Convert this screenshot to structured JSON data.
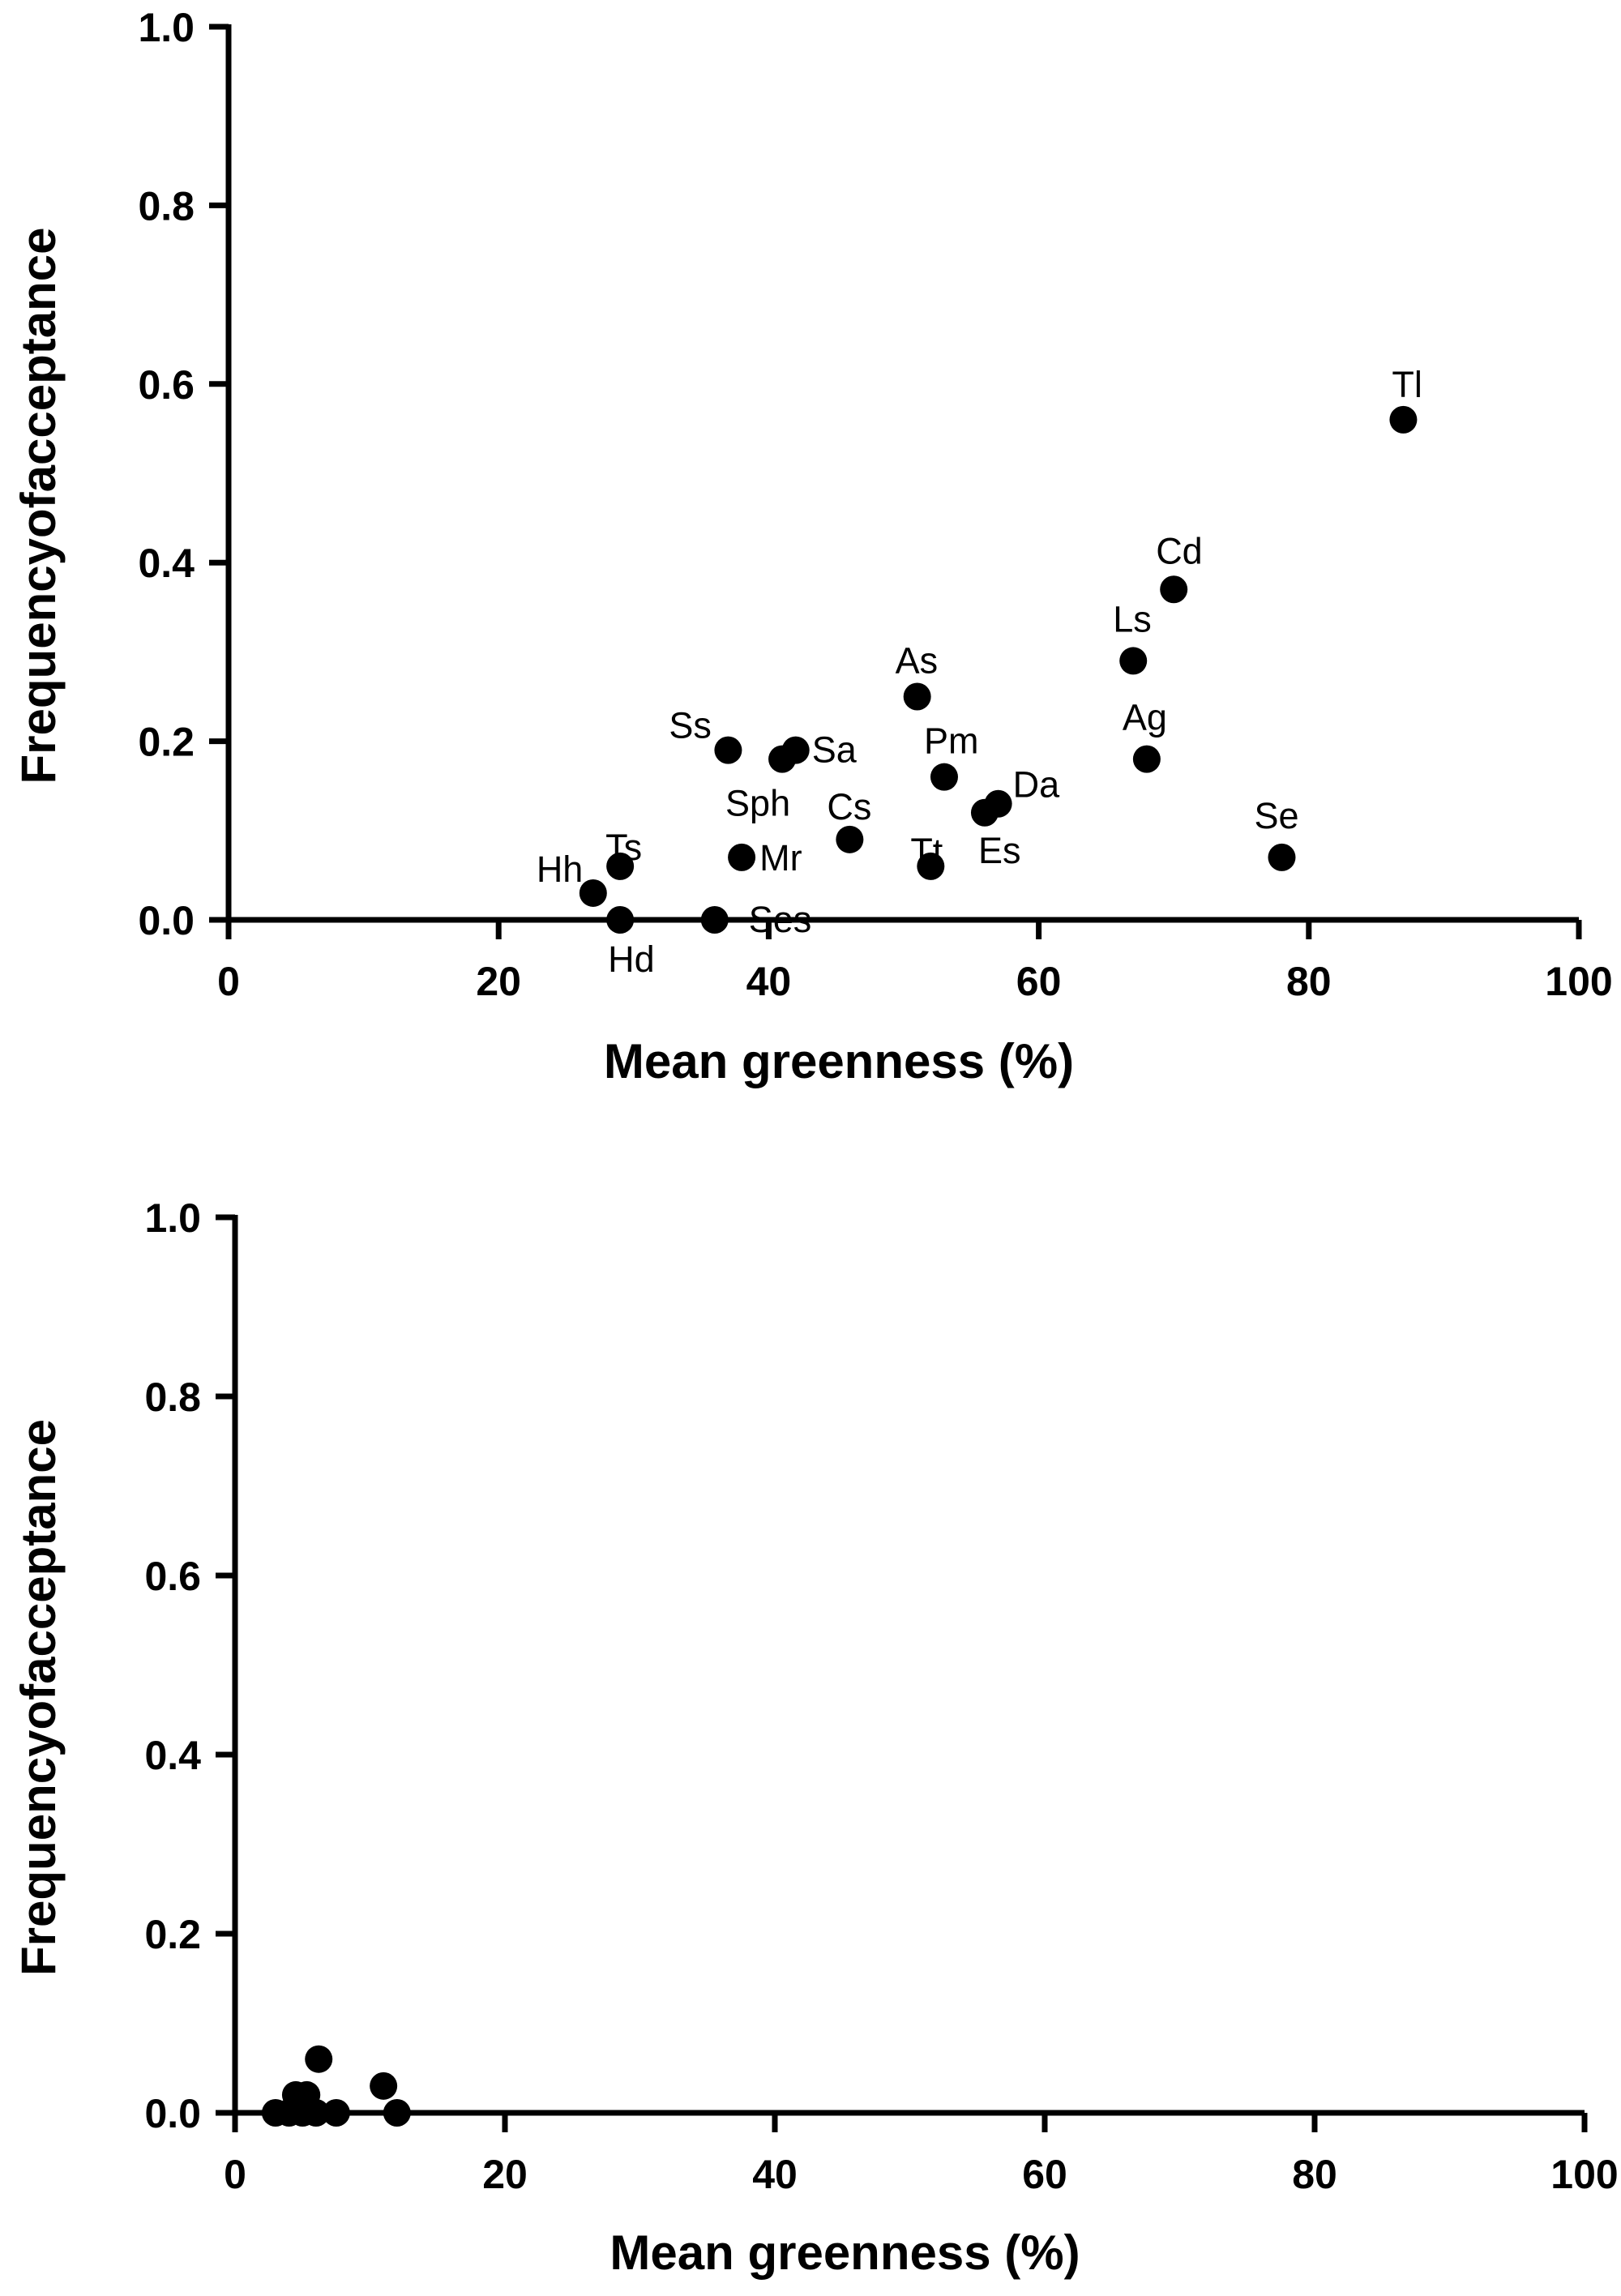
{
  "chart_data": [
    {
      "type": "scatter",
      "title": "",
      "xlabel": "Mean greenness (%)",
      "ylabel": "Frequencyofacceptance",
      "xlim": [
        0,
        100
      ],
      "ylim": [
        0,
        1
      ],
      "xticks": [
        0,
        20,
        40,
        60,
        80,
        100
      ],
      "yticks": [
        "0.0",
        "0.2",
        "0.4",
        "0.6",
        "0.8",
        "1.0"
      ],
      "grid": false,
      "points": [
        {
          "label": "Tl",
          "x": 87,
          "y": 0.56
        },
        {
          "label": "Cd",
          "x": 70,
          "y": 0.37
        },
        {
          "label": "Ls",
          "x": 67,
          "y": 0.29
        },
        {
          "label": "Ag",
          "x": 68,
          "y": 0.18
        },
        {
          "label": "Se",
          "x": 78,
          "y": 0.07
        },
        {
          "label": "As",
          "x": 51,
          "y": 0.25
        },
        {
          "label": "Pm",
          "x": 53,
          "y": 0.16
        },
        {
          "label": "Da",
          "x": 57,
          "y": 0.13
        },
        {
          "label": "Es",
          "x": 56,
          "y": 0.12
        },
        {
          "label": "Tt",
          "x": 52,
          "y": 0.06
        },
        {
          "label": "Cs",
          "x": 46,
          "y": 0.09
        },
        {
          "label": "Ss",
          "x": 37,
          "y": 0.19
        },
        {
          "label": "Sa",
          "x": 42,
          "y": 0.19
        },
        {
          "label": "Sph",
          "x": 41,
          "y": 0.18
        },
        {
          "label": "Mr",
          "x": 38,
          "y": 0.07
        },
        {
          "label": "Ses",
          "x": 36,
          "y": 0.0
        },
        {
          "label": "Ts",
          "x": 29,
          "y": 0.06
        },
        {
          "label": "Hh",
          "x": 27,
          "y": 0.03
        },
        {
          "label": "Hd",
          "x": 29,
          "y": 0.0
        }
      ]
    },
    {
      "type": "scatter",
      "title": "",
      "xlabel": "Mean greenness (%)",
      "ylabel": "Frequencyofacceptance",
      "xlim": [
        0,
        100
      ],
      "ylim": [
        0,
        1
      ],
      "xticks": [
        0,
        20,
        40,
        60,
        80,
        100
      ],
      "yticks": [
        "0.0",
        "0.2",
        "0.4",
        "0.6",
        "0.8",
        "1.0"
      ],
      "grid": false,
      "points": [
        {
          "x": 3,
          "y": 0.0
        },
        {
          "x": 4,
          "y": 0.0
        },
        {
          "x": 4.5,
          "y": 0.02
        },
        {
          "x": 5,
          "y": 0.0
        },
        {
          "x": 5.3,
          "y": 0.02
        },
        {
          "x": 6,
          "y": 0.0
        },
        {
          "x": 6.2,
          "y": 0.06
        },
        {
          "x": 7.5,
          "y": 0.0
        },
        {
          "x": 11,
          "y": 0.03
        },
        {
          "x": 12,
          "y": 0.0
        }
      ]
    }
  ]
}
